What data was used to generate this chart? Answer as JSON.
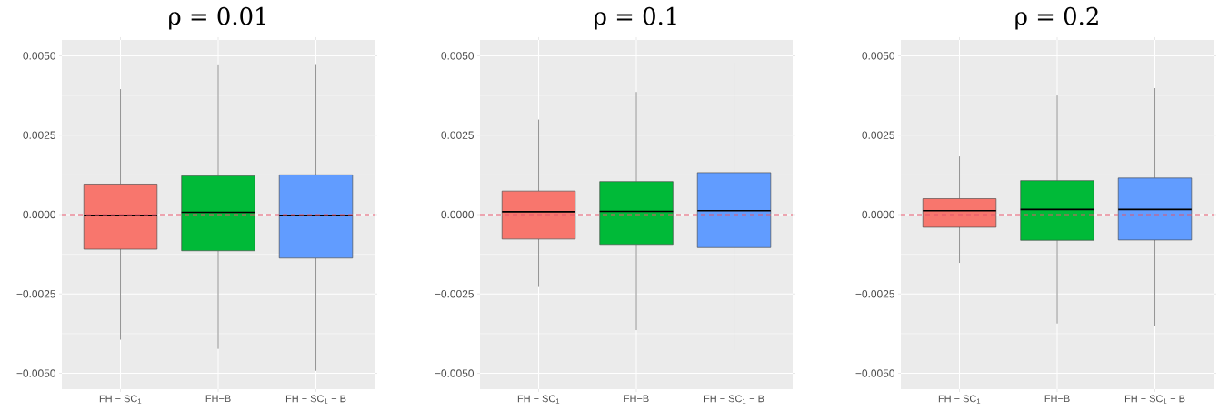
{
  "chart_data": [
    {
      "type": "box",
      "title": "ρ = 0.01",
      "categories": [
        "FH − SC$_{1}$",
        "FH−B",
        "FH − SC$_{1}$ − B"
      ],
      "boxes": [
        {
          "low": -0.00394,
          "q1": -0.00109,
          "median": -2e-05,
          "q3": 0.00096,
          "high": 0.00395
        },
        {
          "low": -0.00423,
          "q1": -0.00114,
          "median": 7e-05,
          "q3": 0.00122,
          "high": 0.00473
        },
        {
          "low": -0.00492,
          "q1": -0.00137,
          "median": -2e-05,
          "q3": 0.00125,
          "high": 0.00474
        }
      ],
      "colors": [
        "#f8766d",
        "#00ba38",
        "#619cff"
      ],
      "ylim": [
        -0.0055,
        0.0055
      ],
      "yticks": [
        {
          "value": -0.005,
          "label": "−0.0050"
        },
        {
          "value": -0.0025,
          "label": "−0.0025"
        },
        {
          "value": 0,
          "label": "0.0000"
        },
        {
          "value": 0.0025,
          "label": "0.0025"
        },
        {
          "value": 0.005,
          "label": "0.0050"
        }
      ],
      "grid": true,
      "ref_lines": [
        {
          "axis": "y",
          "value": 0,
          "color": "#e4546a",
          "line_style": "dashed"
        }
      ]
    },
    {
      "type": "box",
      "title": "ρ = 0.1",
      "categories": [
        "FH − SC$_{1}$",
        "FH−B",
        "FH − SC$_{1}$ − B"
      ],
      "boxes": [
        {
          "low": -0.00228,
          "q1": -0.00077,
          "median": 9e-05,
          "q3": 0.00074,
          "high": 0.00299
        },
        {
          "low": -0.00364,
          "q1": -0.00094,
          "median": 0.0001,
          "q3": 0.00104,
          "high": 0.00386
        },
        {
          "low": -0.00427,
          "q1": -0.00104,
          "median": 0.00012,
          "q3": 0.00132,
          "high": 0.00478
        }
      ],
      "colors": [
        "#f8766d",
        "#00ba38",
        "#619cff"
      ],
      "ylim": [
        -0.0055,
        0.0055
      ],
      "yticks": [
        {
          "value": -0.005,
          "label": "−0.0050"
        },
        {
          "value": -0.0025,
          "label": "−0.0025"
        },
        {
          "value": 0,
          "label": "0.0000"
        },
        {
          "value": 0.0025,
          "label": "0.0025"
        },
        {
          "value": 0.005,
          "label": "0.0050"
        }
      ],
      "grid": true,
      "ref_lines": [
        {
          "axis": "y",
          "value": 0,
          "color": "#e4546a",
          "line_style": "dashed"
        }
      ]
    },
    {
      "type": "box",
      "title": "ρ = 0.2",
      "categories": [
        "FH − SC$_{1}$",
        "FH−B",
        "FH − SC$_{1}$ − B"
      ],
      "boxes": [
        {
          "low": -0.00152,
          "q1": -0.0004,
          "median": 0.00012,
          "q3": 0.0005,
          "high": 0.00183
        },
        {
          "low": -0.00343,
          "q1": -0.00081,
          "median": 0.00016,
          "q3": 0.00107,
          "high": 0.00375
        },
        {
          "low": -0.0035,
          "q1": -0.0008,
          "median": 0.00016,
          "q3": 0.00115,
          "high": 0.00398
        }
      ],
      "colors": [
        "#f8766d",
        "#00ba38",
        "#619cff"
      ],
      "ylim": [
        -0.0055,
        0.0055
      ],
      "yticks": [
        {
          "value": -0.005,
          "label": "−0.0050"
        },
        {
          "value": -0.0025,
          "label": "−0.0025"
        },
        {
          "value": 0,
          "label": "0.0000"
        },
        {
          "value": 0.0025,
          "label": "0.0025"
        },
        {
          "value": 0.005,
          "label": "0.0050"
        }
      ],
      "grid": true,
      "ref_lines": [
        {
          "axis": "y",
          "value": 0,
          "color": "#e4546a",
          "line_style": "dashed"
        }
      ]
    }
  ]
}
